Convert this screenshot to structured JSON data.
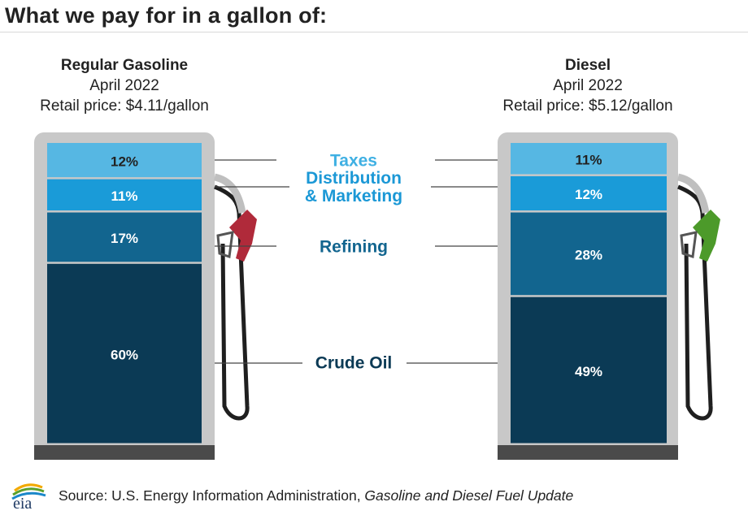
{
  "title": "What we pay for in a gallon of:",
  "pumps": [
    {
      "name": "Regular Gasoline",
      "date": "April 2022",
      "price_text": "Retail price: $4.11/gallon",
      "nozzle_color": "#b02a3a"
    },
    {
      "name": "Diesel",
      "date": "April 2022",
      "price_text": "Retail price: $5.12/gallon",
      "nozzle_color": "#4c9a2a"
    }
  ],
  "chart_data": {
    "type": "bar",
    "stacked": true,
    "orientation": "vertical",
    "categories": [
      "Regular Gasoline",
      "Diesel"
    ],
    "series": [
      {
        "name": "Crude Oil",
        "values": [
          60,
          49
        ],
        "color": "#0b3a55"
      },
      {
        "name": "Refining",
        "values": [
          17,
          28
        ],
        "color": "#12658f"
      },
      {
        "name": "Distribution & Marketing",
        "values": [
          11,
          12
        ],
        "color": "#1a9bd8"
      },
      {
        "name": "Taxes",
        "values": [
          12,
          11
        ],
        "color": "#56b7e3"
      }
    ],
    "labels": [
      {
        "name": "Taxes",
        "lines": [
          "Taxes"
        ],
        "color": "#3fb0e3"
      },
      {
        "name": "Distribution & Marketing",
        "lines": [
          "Distribution",
          "& Marketing"
        ],
        "color": "#1b98d6"
      },
      {
        "name": "Refining",
        "lines": [
          "Refining"
        ],
        "color": "#12658f"
      },
      {
        "name": "Crude Oil",
        "lines": [
          "Crude Oil"
        ],
        "color": "#0b3a55"
      }
    ],
    "value_suffix": "%",
    "ylim": [
      0,
      100
    ]
  },
  "footer": {
    "logo_text": "eia",
    "source_prefix": "Source: U.S. Energy Information Administration, ",
    "source_title": "Gasoline and Diesel Fuel Update"
  }
}
